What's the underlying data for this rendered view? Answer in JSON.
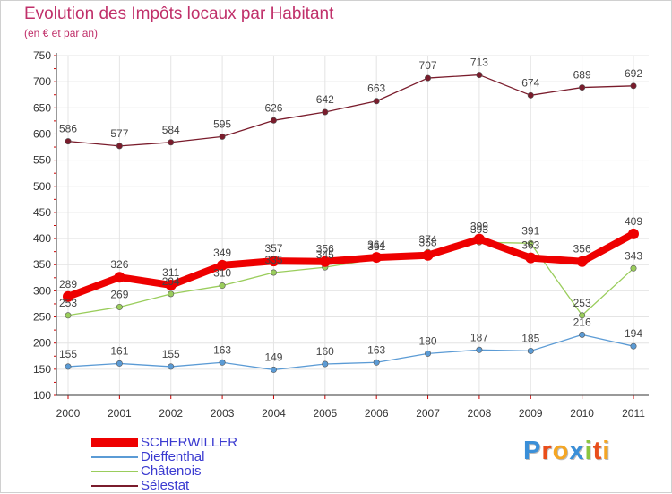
{
  "header": {
    "title": "Evolution des Impôts locaux par Habitant",
    "subtitle": "(en € et par an)"
  },
  "logo": {
    "text": "Proxiti",
    "letters": [
      {
        "ch": "P",
        "color": "#3a8fd8"
      },
      {
        "ch": "r",
        "color": "#e94e1b"
      },
      {
        "ch": "o",
        "color": "#f5a623"
      },
      {
        "ch": "x",
        "color": "#3a8fd8"
      },
      {
        "ch": "i",
        "color": "#8cc63f"
      },
      {
        "ch": "t",
        "color": "#e94e1b"
      },
      {
        "ch": "i",
        "color": "#f5a623"
      }
    ]
  },
  "chart_data": {
    "type": "line",
    "title": "Evolution des Impôts locaux par Habitant",
    "subtitle": "(en € et par an)",
    "x": [
      "2000",
      "2001",
      "2002",
      "2003",
      "2004",
      "2005",
      "2006",
      "2007",
      "2008",
      "2009",
      "2010",
      "2011"
    ],
    "ylim": [
      100,
      750
    ],
    "yticks": [
      100,
      150,
      200,
      250,
      300,
      350,
      400,
      450,
      500,
      550,
      600,
      650,
      700,
      750
    ],
    "grid": true,
    "legend_position": "bottom-left",
    "series": [
      {
        "name": "Sélestat",
        "color": "#7a1c2c",
        "emphasis": false,
        "values": [
          586,
          577,
          584,
          595,
          626,
          642,
          663,
          707,
          713,
          674,
          689,
          692
        ],
        "labels": [
          "586",
          "577",
          "584",
          "595",
          "626",
          "642",
          "663",
          "707",
          "713",
          "674",
          "689",
          "692"
        ]
      },
      {
        "name": "Dieffenthal",
        "color": "#5b9bd5",
        "emphasis": false,
        "values": [
          155,
          161,
          155,
          163,
          149,
          160,
          163,
          180,
          187,
          185,
          216,
          194
        ],
        "labels": [
          "155",
          "161",
          "155",
          "163",
          "149",
          "160",
          "163",
          "180",
          "187",
          "185",
          "216",
          "194"
        ]
      },
      {
        "name": "Châtenois",
        "color": "#9acd5c",
        "emphasis": false,
        "values": [
          253,
          269,
          294,
          310,
          335,
          345,
          361,
          374,
          393,
          391,
          253,
          343
        ],
        "labels": [
          "253",
          "269",
          "294",
          "310",
          "335",
          "345",
          "361",
          "374",
          "393",
          "391",
          "253",
          "343"
        ]
      },
      {
        "name": "SCHERWILLER",
        "color": "#ee0000",
        "emphasis": true,
        "values": [
          289,
          326,
          311,
          349,
          357,
          356,
          364,
          368,
          399,
          363,
          356,
          409
        ],
        "labels": [
          "289",
          "326",
          "311",
          "349",
          "357",
          "356",
          "364",
          "368",
          "399",
          "363",
          "356",
          "409"
        ]
      }
    ],
    "legend": [
      "SCHERWILLER",
      "Dieffenthal",
      "Châtenois",
      "Sélestat"
    ]
  }
}
